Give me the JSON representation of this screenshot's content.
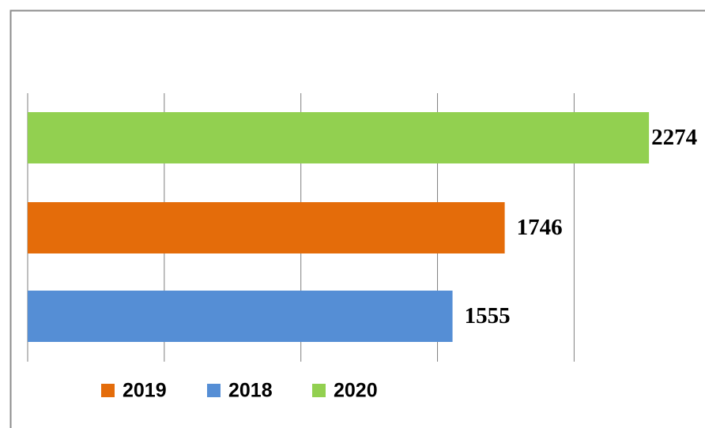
{
  "chart_data": {
    "type": "bar",
    "orientation": "horizontal",
    "categories": [
      null
    ],
    "series": [
      {
        "name": "2019",
        "color": "#e46c0a",
        "values": [
          1746
        ]
      },
      {
        "name": "2018",
        "color": "#558ed5",
        "values": [
          1555
        ]
      },
      {
        "name": "2020",
        "color": "#92d050",
        "values": [
          2274
        ]
      }
    ],
    "xlim": [
      0,
      2500
    ],
    "xticks": [
      0,
      500,
      1000,
      1500,
      2000
    ],
    "grid": true,
    "legend": "bottom"
  }
}
